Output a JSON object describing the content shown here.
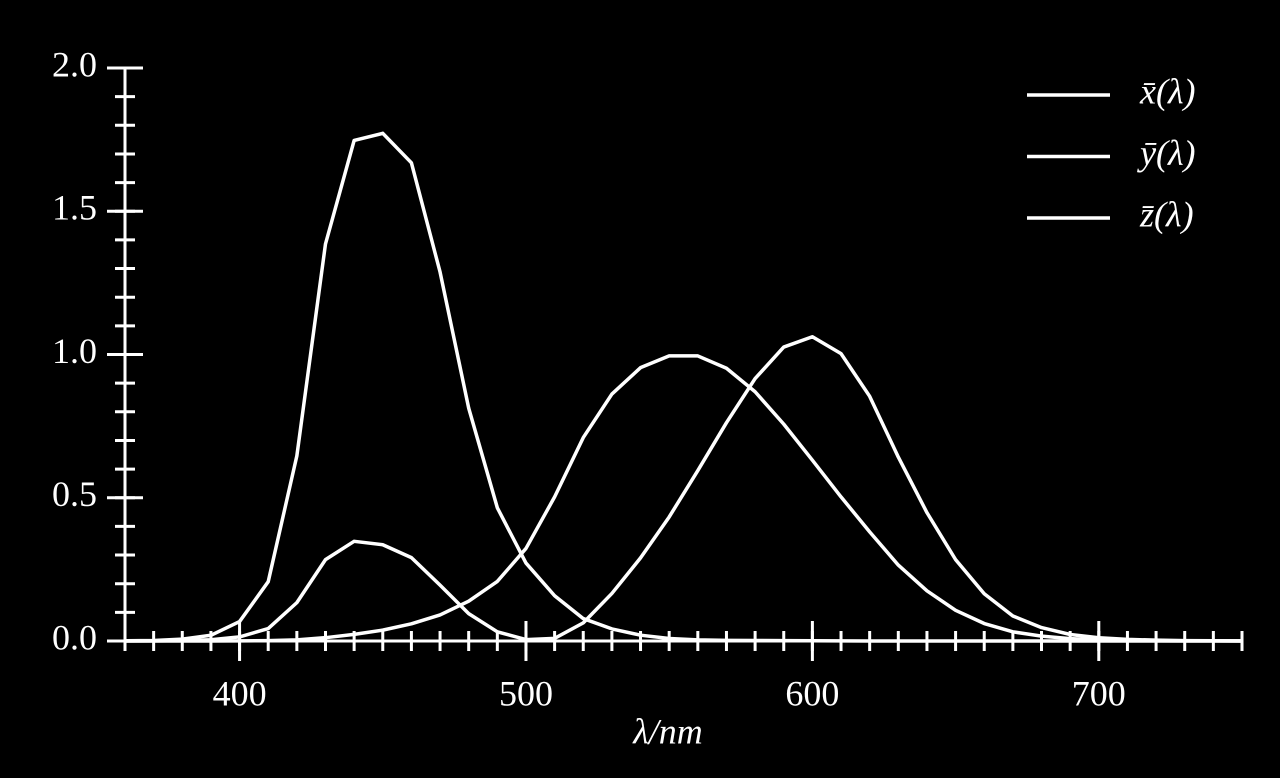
{
  "chart_data": {
    "type": "line",
    "x_label": "λ/nm",
    "x": [
      360,
      370,
      380,
      390,
      400,
      410,
      420,
      430,
      440,
      450,
      460,
      470,
      480,
      490,
      500,
      510,
      520,
      530,
      540,
      550,
      560,
      570,
      580,
      590,
      600,
      610,
      620,
      630,
      640,
      650,
      660,
      670,
      680,
      690,
      700,
      710,
      720,
      730,
      740,
      750
    ],
    "series": [
      {
        "name": "x̄(λ)",
        "color": "#ffffff",
        "values": [
          0.00013,
          0.000415,
          0.00137,
          0.00424,
          0.0143,
          0.0435,
          0.134,
          0.284,
          0.348,
          0.336,
          0.291,
          0.195,
          0.0956,
          0.032,
          0.0049,
          0.0093,
          0.0633,
          0.166,
          0.29,
          0.433,
          0.595,
          0.762,
          0.916,
          1.026,
          1.062,
          1.003,
          0.854,
          0.642,
          0.448,
          0.284,
          0.165,
          0.0874,
          0.0468,
          0.0227,
          0.0114,
          0.0058,
          0.0029,
          0.0014,
          0.0007,
          0.00033
        ]
      },
      {
        "name": "ȳ(λ)",
        "color": "#ffffff",
        "values": [
          3.9e-06,
          1.2e-05,
          3.9e-05,
          0.00012,
          0.0004,
          0.0012,
          0.004,
          0.0116,
          0.023,
          0.038,
          0.06,
          0.091,
          0.139,
          0.208,
          0.323,
          0.503,
          0.71,
          0.862,
          0.954,
          0.995,
          0.995,
          0.952,
          0.87,
          0.757,
          0.631,
          0.503,
          0.381,
          0.265,
          0.175,
          0.107,
          0.061,
          0.032,
          0.017,
          0.0082,
          0.0041,
          0.0021,
          0.00105,
          0.00052,
          0.00025,
          0.00012
        ]
      },
      {
        "name": "z̄(λ)",
        "color": "#ffffff",
        "values": [
          0.0006,
          0.00195,
          0.00645,
          0.02,
          0.0679,
          0.207,
          0.646,
          1.386,
          1.747,
          1.772,
          1.669,
          1.288,
          0.813,
          0.465,
          0.272,
          0.158,
          0.0783,
          0.0422,
          0.0203,
          0.0088,
          0.0039,
          0.0021,
          0.0017,
          0.0011,
          0.0008,
          0.0003,
          0.0002,
          5e-05,
          2e-05,
          0,
          0,
          0,
          0,
          0,
          0,
          0,
          0,
          0,
          0,
          0
        ]
      }
    ],
    "xlim": [
      360,
      750
    ],
    "ylim": [
      0,
      2
    ],
    "xticks": [
      400,
      500,
      600,
      700
    ],
    "yticks": [
      {
        "value": 0,
        "label": "0.0"
      },
      0.5,
      {
        "value": 1,
        "label": "1.0"
      },
      1.5,
      {
        "value": 2,
        "label": "2.0"
      }
    ],
    "x_minor_tick_step": 10,
    "y_minor_tick_step": 0.1,
    "legend": "upper right",
    "grid": false
  }
}
